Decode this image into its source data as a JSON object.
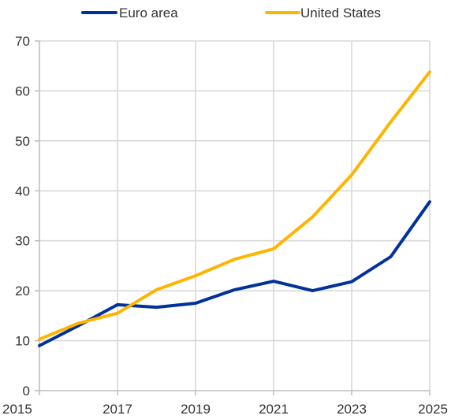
{
  "chart_data": {
    "type": "line",
    "x": [
      2015,
      2016,
      2017,
      2018,
      2019,
      2020,
      2021,
      2022,
      2023,
      2024,
      2025
    ],
    "series": [
      {
        "name": "Euro area",
        "color": "#003299",
        "values": [
          9.0,
          13.0,
          17.2,
          16.7,
          17.5,
          20.2,
          21.9,
          20.0,
          21.8,
          26.8,
          37.8
        ]
      },
      {
        "name": "United States",
        "color": "#FFB400",
        "values": [
          10.3,
          13.5,
          15.5,
          20.2,
          23.0,
          26.3,
          28.4,
          34.8,
          43.2,
          53.8,
          63.8
        ]
      }
    ],
    "xlabel": "",
    "ylabel": "",
    "ylim": [
      0,
      70
    ],
    "xlim": [
      2015,
      2025
    ],
    "yticks": [
      "0",
      "10",
      "20",
      "30",
      "40",
      "50",
      "60",
      "70"
    ],
    "xticks": [
      "2015",
      "2017",
      "2019",
      "2021",
      "2023",
      "2025"
    ],
    "grid": true,
    "legend_position": "top"
  }
}
